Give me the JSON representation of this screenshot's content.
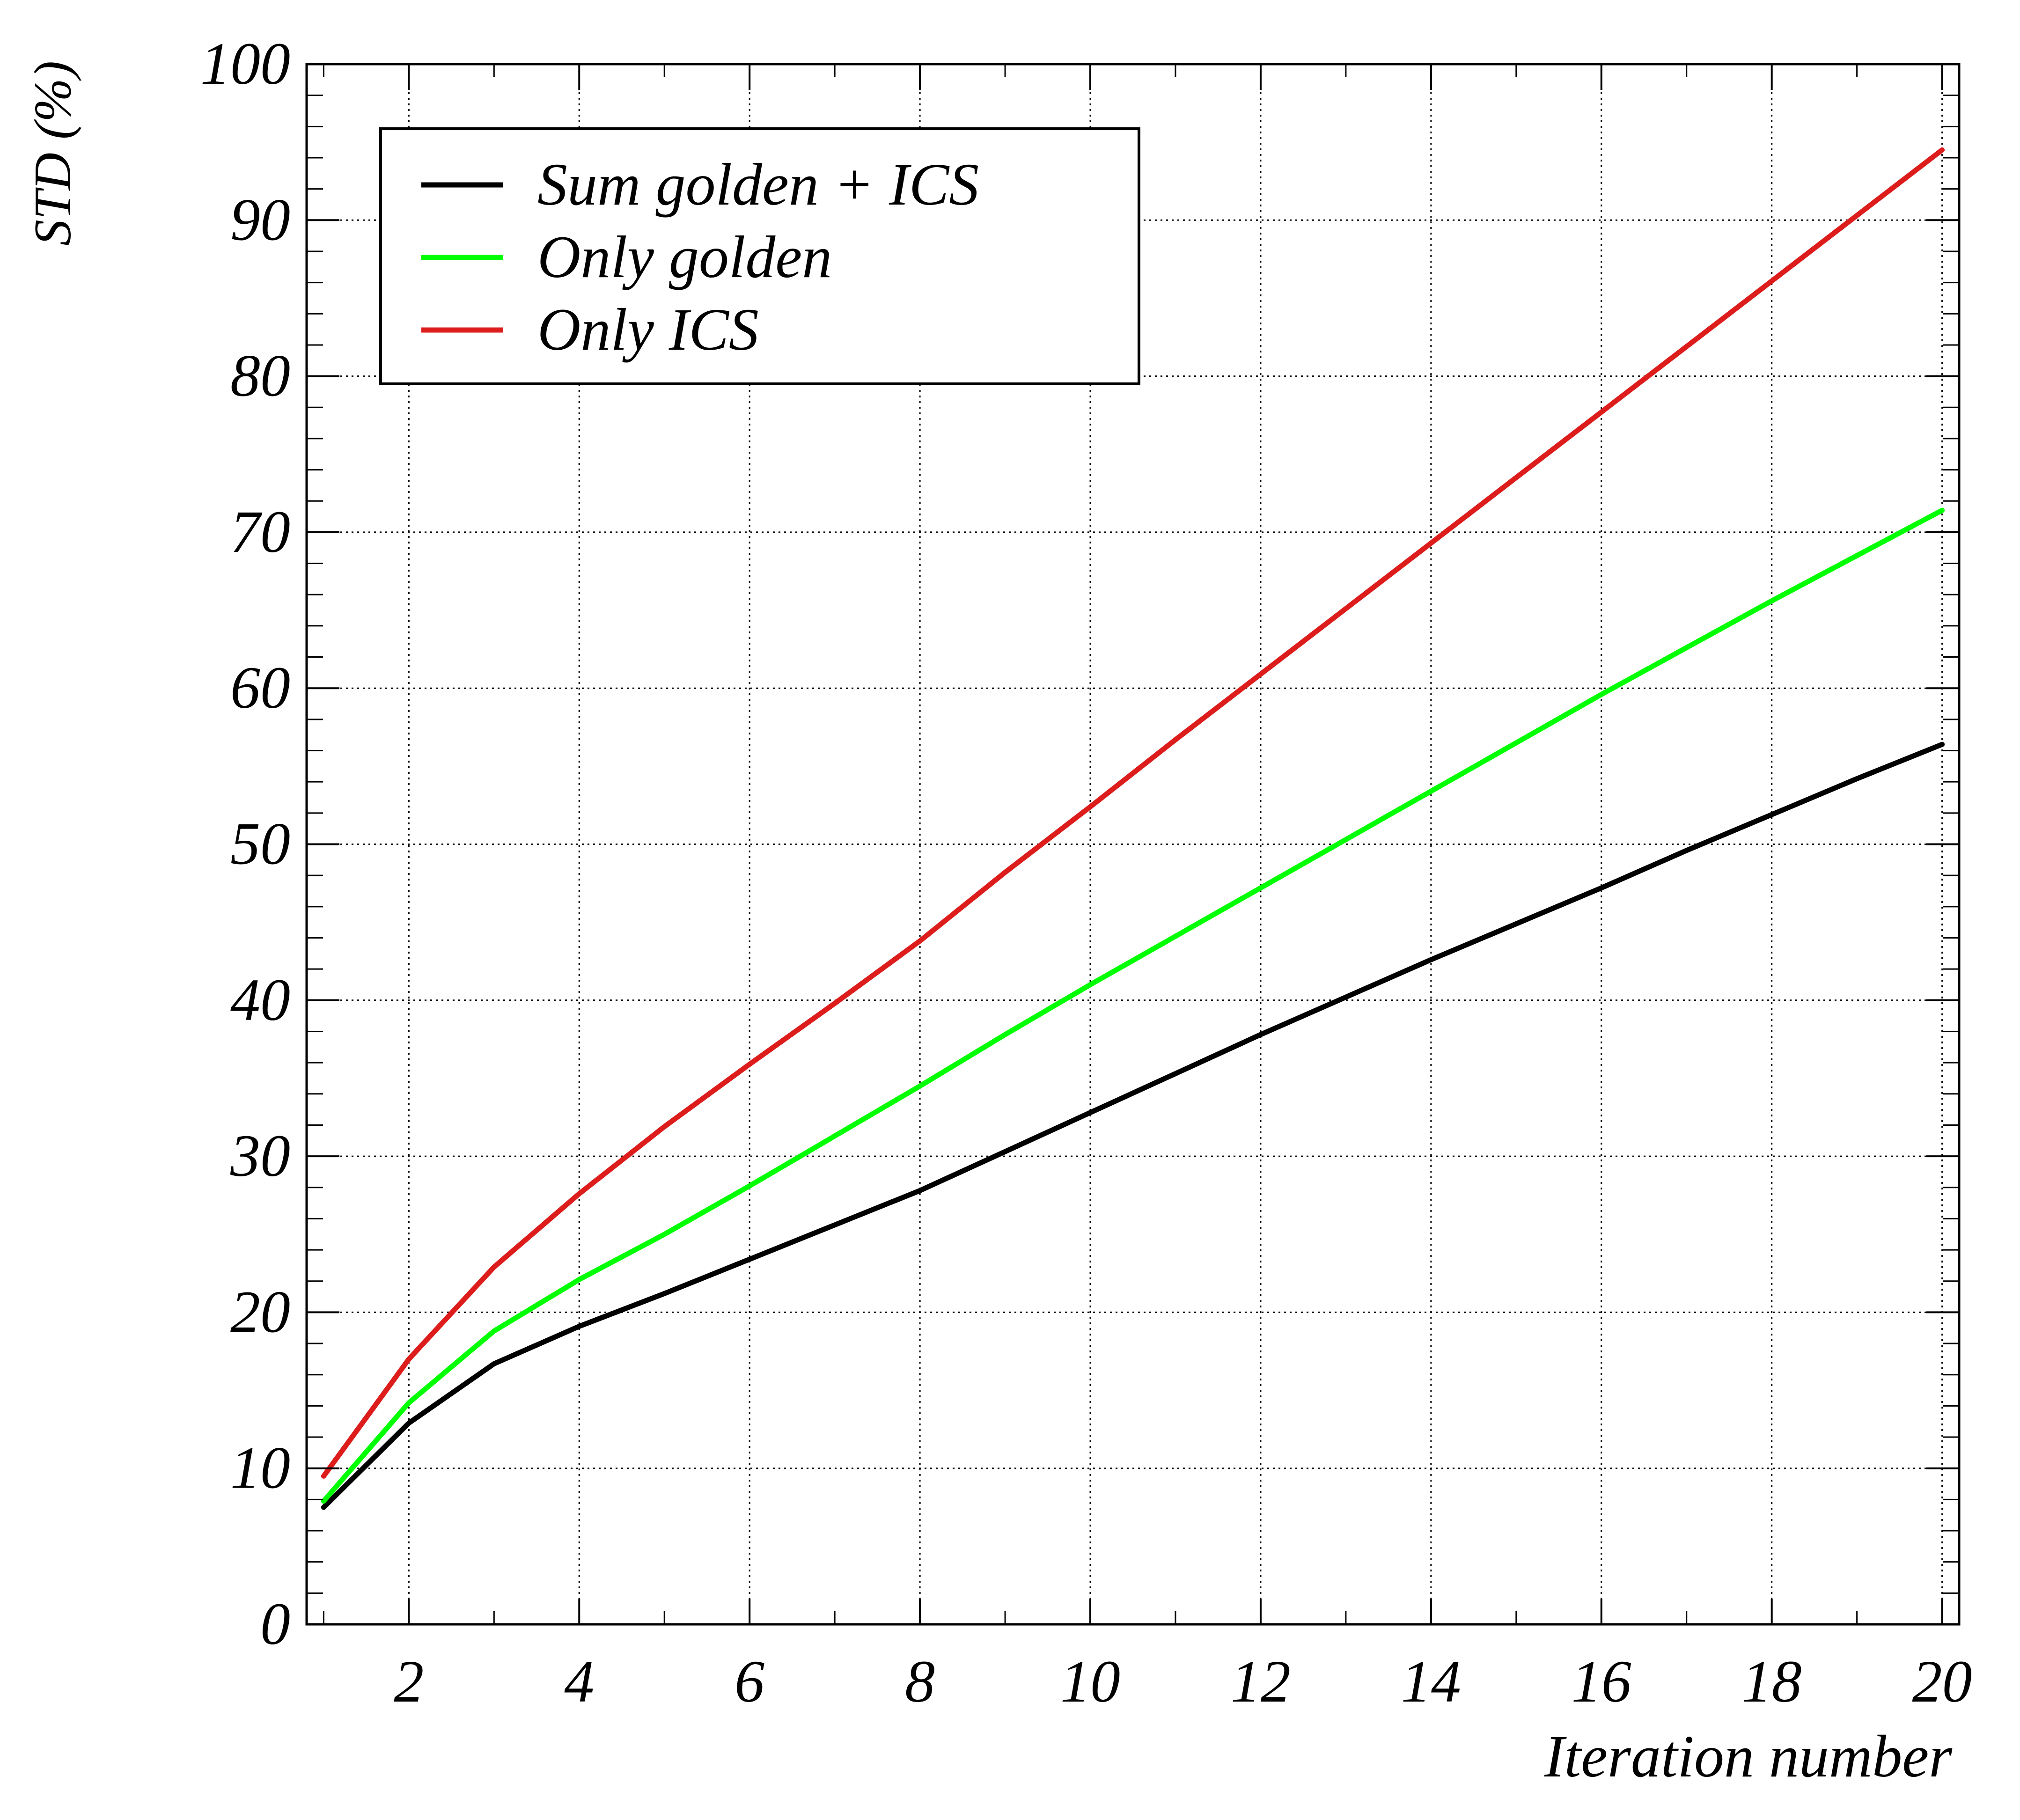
{
  "chart_data": {
    "type": "line",
    "xlabel": "Iteration number",
    "ylabel": "STD (%)",
    "xlim": [
      0.8,
      20.2
    ],
    "ylim": [
      0,
      100
    ],
    "x_ticks": [
      2,
      4,
      6,
      8,
      10,
      12,
      14,
      16,
      18,
      20
    ],
    "y_ticks": [
      0,
      10,
      20,
      30,
      40,
      50,
      60,
      70,
      80,
      90,
      100
    ],
    "grid": true,
    "legend_position": "top-left",
    "x": [
      1,
      2,
      3,
      4,
      5,
      6,
      7,
      8,
      9,
      10,
      11,
      12,
      13,
      14,
      15,
      16,
      17,
      18,
      19,
      20
    ],
    "series": [
      {
        "name": "Sum golden + ICS",
        "color": "#000000",
        "values": [
          7.5,
          12.9,
          16.7,
          19.1,
          21.2,
          23.4,
          25.6,
          27.8,
          30.3,
          32.8,
          35.3,
          37.8,
          40.2,
          42.6,
          44.9,
          47.2,
          49.6,
          51.9,
          54.2,
          56.4
        ]
      },
      {
        "name": "Only golden",
        "color": "#00ff00",
        "values": [
          7.9,
          14.2,
          18.8,
          22.1,
          25.0,
          28.1,
          31.3,
          34.5,
          37.8,
          41.0,
          44.1,
          47.2,
          50.3,
          53.4,
          56.5,
          59.6,
          62.6,
          65.6,
          68.5,
          71.4
        ]
      },
      {
        "name": "Only ICS",
        "color": "#dd1c1c",
        "values": [
          9.5,
          17.0,
          22.9,
          27.6,
          31.9,
          35.9,
          39.8,
          43.8,
          48.2,
          52.4,
          56.7,
          60.9,
          65.1,
          69.3,
          73.5,
          77.7,
          81.9,
          86.1,
          90.3,
          94.5
        ]
      }
    ]
  }
}
